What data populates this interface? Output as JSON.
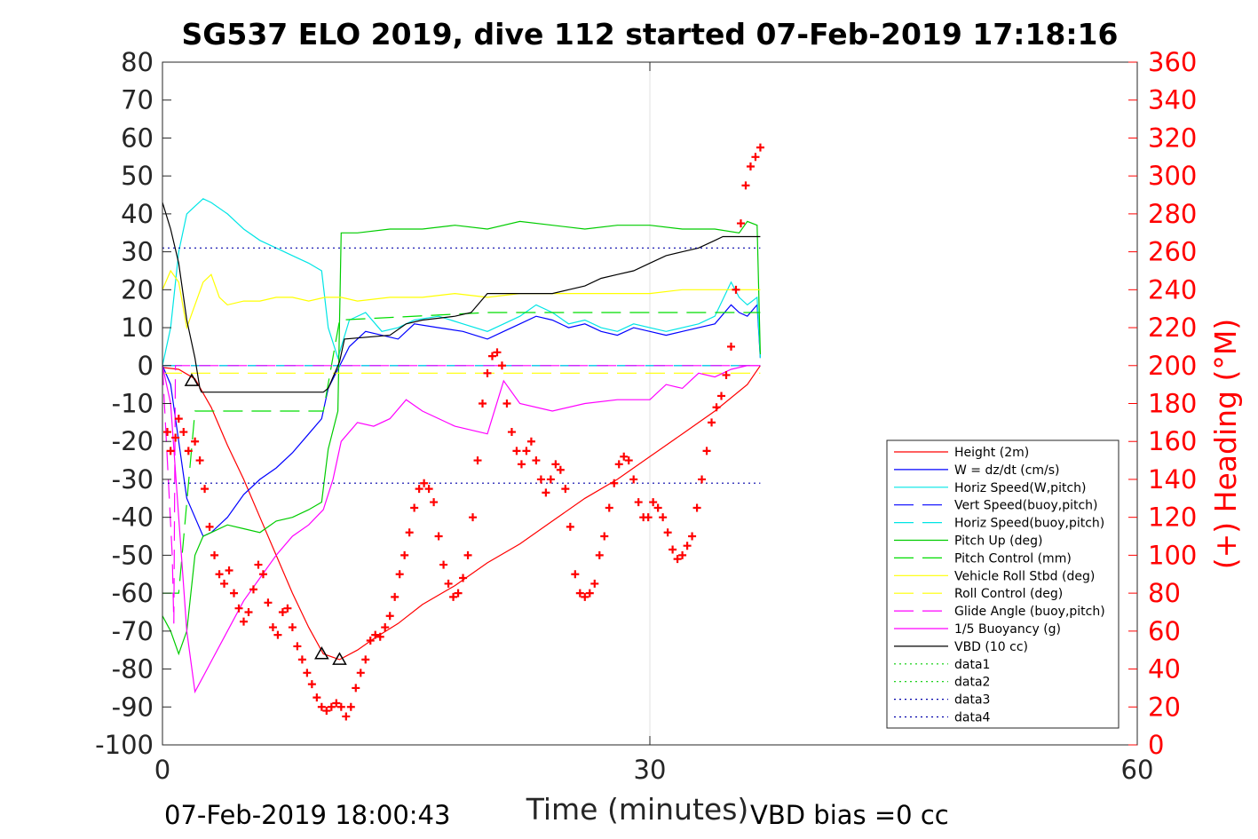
{
  "chart_data": {
    "type": "line",
    "title": "SG537 ELO 2019, dive 112 started 07-Feb-2019 17:18:16",
    "xlabel": "Time (minutes)",
    "ylabel_right": "(+) Heading (°M)",
    "xlim": [
      0,
      60
    ],
    "ylim": [
      -100,
      80
    ],
    "ylim_right": [
      0,
      360
    ],
    "x_ticks": [
      "0",
      "30",
      "60"
    ],
    "y_ticks": [
      "80",
      "70",
      "60",
      "50",
      "40",
      "30",
      "20",
      "10",
      "0",
      "-10",
      "-20",
      "-30",
      "-40",
      "-50",
      "-60",
      "-70",
      "-80",
      "-90",
      "-100"
    ],
    "y_ticks_right": [
      "360",
      "340",
      "320",
      "300",
      "280",
      "260",
      "240",
      "220",
      "200",
      "180",
      "160",
      "140",
      "120",
      "100",
      "80",
      "60",
      "40",
      "20",
      "0"
    ],
    "grid": "x-only",
    "legend_position": "lower-right",
    "footer_left": "07-Feb-2019 18:00:43",
    "footer_right": "VBD bias =0 cc",
    "series": [
      {
        "name": "Height (2m)",
        "color": "#ff0000",
        "style": "solid",
        "x": [
          0.0,
          1.0,
          2.0,
          3.0,
          4.0,
          5.0,
          6.0,
          7.0,
          8.0,
          9.0,
          9.9,
          10.9,
          12.0,
          13.0,
          14.5,
          16.0,
          18.0,
          20.0,
          22.0,
          24.0,
          26.0,
          28.0,
          30.0,
          32.0,
          34.0,
          36.0,
          36.8
        ],
        "y": [
          -0.5,
          -1.0,
          -3.5,
          -11.0,
          -21.0,
          -30.0,
          -40.0,
          -50.0,
          -60.0,
          -69.0,
          -76.0,
          -77.5,
          -75.0,
          -72.0,
          -68.0,
          -63.0,
          -58.0,
          -52.0,
          -47.0,
          -41.0,
          -35.0,
          -30.0,
          -24.0,
          -18.0,
          -12.0,
          -5.0,
          0.0
        ]
      },
      {
        "name": "W = dz/dt (cm/s)",
        "color": "#0000ff",
        "style": "solid",
        "x": [
          0.0,
          0.5,
          1.0,
          1.5,
          2.0,
          2.5,
          3.0,
          4.0,
          5.0,
          6.0,
          7.0,
          8.0,
          9.0,
          9.8,
          10.2,
          10.8,
          11.5,
          12.5,
          13.5,
          14.5,
          15.5,
          17.0,
          18.5,
          20.0,
          21.0,
          22.0,
          23.0,
          24.0,
          25.0,
          26.0,
          27.0,
          28.0,
          29.0,
          30.0,
          31.0,
          32.0,
          33.0,
          34.0,
          35.0,
          35.5,
          36.0,
          36.6,
          36.8
        ],
        "y": [
          0.0,
          -5.0,
          -20.0,
          -35.0,
          -40.0,
          -45.0,
          -44.0,
          -40.0,
          -34.0,
          -30.0,
          -27.0,
          -23.0,
          -18.0,
          -14.0,
          -6.0,
          -1.0,
          5.0,
          9.0,
          8.0,
          7.0,
          11.0,
          10.0,
          9.0,
          7.0,
          9.0,
          11.0,
          13.0,
          12.0,
          10.0,
          11.0,
          9.0,
          8.0,
          10.0,
          9.0,
          8.0,
          9.0,
          10.0,
          11.0,
          16.0,
          14.0,
          13.0,
          16.0,
          2.0
        ]
      },
      {
        "name": "Horiz Speed(W,pitch)",
        "color": "#00e5e5",
        "style": "solid",
        "x": [
          0.0,
          0.5,
          1.0,
          1.5,
          2.0,
          2.5,
          3.0,
          4.0,
          5.0,
          6.0,
          7.0,
          8.0,
          9.0,
          9.8,
          10.2,
          10.8,
          11.5,
          12.5,
          13.5,
          14.5,
          15.5,
          17.0,
          18.5,
          20.0,
          21.0,
          22.0,
          23.0,
          24.0,
          25.0,
          26.0,
          27.0,
          28.0,
          29.0,
          30.0,
          31.0,
          32.0,
          33.0,
          34.0,
          35.0,
          35.5,
          36.0,
          36.6,
          36.8
        ],
        "y": [
          0.0,
          10.0,
          30.0,
          40.0,
          42.0,
          44.0,
          43.0,
          40.0,
          36.0,
          33.0,
          31.0,
          29.0,
          27.0,
          25.0,
          10.0,
          2.0,
          12.0,
          14.0,
          9.0,
          10.0,
          12.0,
          13.0,
          11.0,
          9.0,
          11.0,
          13.0,
          16.0,
          14.0,
          11.0,
          12.0,
          10.0,
          9.0,
          11.0,
          10.0,
          9.0,
          10.0,
          11.0,
          13.0,
          22.0,
          18.0,
          16.0,
          18.0,
          2.0
        ]
      },
      {
        "name": "Vert Speed(buoy,pitch)",
        "color": "#0000ff",
        "style": "dashed",
        "x": [
          0.0,
          36.8
        ],
        "y": [
          0.0,
          0.0
        ]
      },
      {
        "name": "Horiz Speed(buoy,pitch)",
        "color": "#00e5e5",
        "style": "dashed",
        "x": [
          0.0,
          36.8
        ],
        "y": [
          0.0,
          0.0
        ]
      },
      {
        "name": "Pitch Up (deg)",
        "color": "#00cc00",
        "style": "solid",
        "x": [
          0.0,
          0.5,
          1.0,
          1.5,
          2.0,
          2.5,
          3.0,
          4.0,
          5.0,
          6.0,
          7.0,
          8.0,
          9.0,
          9.8,
          10.2,
          10.8,
          11.0,
          12.0,
          14.0,
          16.0,
          18.0,
          20.0,
          22.0,
          24.0,
          26.0,
          28.0,
          30.0,
          32.0,
          34.0,
          35.5,
          36.0,
          36.6,
          36.8
        ],
        "y": [
          -66.0,
          -70.0,
          -76.0,
          -70.0,
          -50.0,
          -45.0,
          -44.0,
          -42.0,
          -43.0,
          -44.0,
          -41.0,
          -40.0,
          -38.0,
          -36.0,
          -22.0,
          -12.0,
          35.0,
          35.0,
          36.0,
          36.0,
          37.0,
          36.0,
          38.0,
          37.0,
          36.0,
          37.0,
          37.0,
          36.0,
          36.0,
          35.0,
          38.0,
          37.0,
          3.0
        ]
      },
      {
        "name": "Pitch Control (mm)",
        "color": "#00dd00",
        "style": "dashed",
        "x": [
          0.0,
          1.0,
          2.0,
          9.9,
          10.9,
          20.0,
          36.8
        ],
        "y": [
          -60.0,
          -60.0,
          -12.0,
          -12.0,
          12.0,
          14.0,
          14.0
        ]
      },
      {
        "name": "Vehicle Roll Stbd (deg)",
        "color": "#ffff00",
        "style": "solid",
        "x": [
          0.0,
          0.5,
          1.0,
          1.5,
          2.0,
          2.5,
          3.0,
          3.5,
          4.0,
          5.0,
          6.0,
          7.0,
          8.0,
          9.0,
          10.0,
          11.0,
          12.0,
          14.0,
          16.0,
          18.0,
          20.0,
          22.0,
          24.0,
          26.0,
          28.0,
          30.0,
          32.0,
          34.0,
          35.0,
          36.0,
          36.8
        ],
        "y": [
          20.0,
          25.0,
          22.0,
          10.0,
          16.0,
          22.0,
          24.0,
          18.0,
          16.0,
          17.0,
          17.0,
          18.0,
          18.0,
          17.0,
          18.0,
          18.0,
          17.0,
          18.0,
          18.0,
          19.0,
          18.0,
          19.0,
          19.0,
          19.0,
          19.0,
          19.0,
          20.0,
          20.0,
          20.0,
          20.0,
          20.0
        ]
      },
      {
        "name": "Roll Control (deg)",
        "color": "#ffff00",
        "style": "dashed",
        "x": [
          0.0,
          36.8
        ],
        "y": [
          -2.0,
          -2.0
        ]
      },
      {
        "name": "Glide Angle (buoy,pitch)",
        "color": "#ff00ff",
        "style": "dashed",
        "x": [
          0.0,
          0.6,
          0.7,
          0.8,
          36.8
        ],
        "y": [
          0.0,
          -50.0,
          -68.0,
          0.0,
          0.0
        ]
      },
      {
        "name": "1/5 Buoyancy (g)",
        "color": "#ff00ff",
        "style": "solid",
        "x": [
          0.0,
          0.5,
          1.0,
          1.5,
          2.0,
          2.5,
          3.0,
          4.0,
          5.0,
          6.0,
          7.0,
          8.0,
          9.0,
          9.9,
          10.5,
          11.0,
          12.0,
          13.0,
          14.0,
          15.0,
          16.0,
          18.0,
          20.0,
          21.0,
          22.0,
          24.0,
          26.0,
          28.0,
          30.0,
          31.0,
          32.0,
          33.0,
          34.0,
          35.0,
          36.0,
          36.8
        ],
        "y": [
          0.0,
          -10.0,
          -40.0,
          -70.0,
          -86.0,
          -82.0,
          -78.0,
          -70.0,
          -62.0,
          -56.0,
          -50.0,
          -45.0,
          -42.0,
          -38.0,
          -30.0,
          -20.0,
          -15.0,
          -16.0,
          -14.0,
          -9.0,
          -12.0,
          -16.0,
          -18.0,
          -4.0,
          -10.0,
          -12.0,
          -10.0,
          -9.0,
          -9.0,
          -5.0,
          -6.0,
          -2.0,
          -3.0,
          -1.0,
          0.0,
          0.0
        ]
      },
      {
        "name": "VBD (10 cc)",
        "color": "#000000",
        "style": "solid",
        "x": [
          0.0,
          0.5,
          1.0,
          1.5,
          2.0,
          2.3,
          2.4,
          9.9,
          10.2,
          10.9,
          11.2,
          14.0,
          15.0,
          16.0,
          18.0,
          19.0,
          20.0,
          21.0,
          22.0,
          24.0,
          25.0,
          26.0,
          27.0,
          28.0,
          29.0,
          30.0,
          31.0,
          32.0,
          33.0,
          34.0,
          34.5,
          36.8
        ],
        "y": [
          43.0,
          36.0,
          27.0,
          12.0,
          2.0,
          -6.0,
          -7.0,
          -7.0,
          -6.0,
          1.0,
          7.0,
          8.0,
          11.0,
          12.0,
          13.0,
          14.0,
          19.0,
          19.0,
          19.0,
          19.0,
          20.0,
          21.0,
          23.0,
          24.0,
          25.0,
          27.0,
          29.0,
          30.0,
          31.0,
          33.0,
          34.0,
          34.0
        ]
      },
      {
        "name": "data1",
        "color": "#00cc00",
        "style": "dotted",
        "x": [],
        "y": []
      },
      {
        "name": "data2",
        "color": "#00cc00",
        "style": "dotted",
        "x": [],
        "y": []
      },
      {
        "name": "data3",
        "color": "#0000aa",
        "style": "dotted",
        "x": [
          0.0,
          36.8
        ],
        "y": [
          31.0,
          31.0
        ]
      },
      {
        "name": "data4",
        "color": "#0000aa",
        "style": "dotted",
        "x": [
          0.0,
          36.8
        ],
        "y": [
          -31.0,
          -31.0
        ]
      }
    ],
    "heading": {
      "axis": "right",
      "color": "#ff0000",
      "marker": "+",
      "x": [
        0.3,
        0.5,
        0.8,
        1.0,
        1.3,
        1.6,
        2.0,
        2.3,
        2.6,
        2.9,
        3.2,
        3.5,
        3.8,
        4.1,
        4.4,
        4.7,
        5.0,
        5.3,
        5.6,
        5.9,
        6.2,
        6.5,
        6.8,
        7.1,
        7.4,
        7.7,
        8.0,
        8.3,
        8.6,
        8.9,
        9.2,
        9.5,
        9.8,
        10.1,
        10.4,
        10.7,
        11.0,
        11.3,
        11.6,
        11.9,
        12.2,
        12.5,
        12.8,
        13.1,
        13.4,
        13.7,
        14.0,
        14.3,
        14.6,
        14.9,
        15.2,
        15.5,
        15.8,
        16.1,
        16.4,
        16.7,
        17.0,
        17.3,
        17.6,
        17.9,
        18.2,
        18.5,
        18.8,
        19.1,
        19.4,
        19.7,
        20.0,
        20.3,
        20.6,
        20.9,
        21.2,
        21.5,
        21.8,
        22.1,
        22.4,
        22.7,
        23.0,
        23.3,
        23.6,
        23.9,
        24.2,
        24.5,
        24.8,
        25.1,
        25.4,
        25.7,
        26.0,
        26.3,
        26.6,
        26.9,
        27.2,
        27.5,
        27.8,
        28.1,
        28.4,
        28.7,
        29.0,
        29.3,
        29.6,
        29.9,
        30.2,
        30.5,
        30.8,
        31.1,
        31.4,
        31.7,
        32.0,
        32.3,
        32.6,
        32.9,
        33.2,
        33.5,
        33.8,
        34.1,
        34.4,
        34.7,
        35.0,
        35.3,
        35.6,
        35.9,
        36.2,
        36.5,
        36.8
      ],
      "y": [
        165,
        155,
        162,
        172,
        165,
        155,
        160,
        150,
        135,
        115,
        100,
        90,
        85,
        92,
        80,
        72,
        65,
        70,
        82,
        95,
        90,
        75,
        62,
        58,
        70,
        72,
        62,
        52,
        45,
        38,
        32,
        25,
        20,
        18,
        20,
        22,
        20,
        15,
        20,
        30,
        38,
        45,
        55,
        58,
        57,
        62,
        68,
        78,
        90,
        100,
        112,
        125,
        135,
        138,
        135,
        128,
        110,
        95,
        85,
        78,
        80,
        88,
        100,
        120,
        150,
        180,
        196,
        205,
        207,
        200,
        180,
        165,
        155,
        148,
        155,
        160,
        150,
        140,
        133,
        140,
        148,
        145,
        135,
        115,
        90,
        80,
        78,
        80,
        85,
        100,
        110,
        125,
        138,
        148,
        152,
        150,
        140,
        128,
        120,
        120,
        128,
        125,
        120,
        112,
        103,
        98,
        100,
        105,
        110,
        125,
        140,
        155,
        170,
        178,
        184,
        195,
        210,
        240,
        275,
        295,
        305,
        310,
        315
      ]
    },
    "annotations": [
      {
        "marker": "triangle",
        "x": 1.8,
        "y": -4.0
      },
      {
        "marker": "triangle",
        "x": 9.8,
        "y": -76.0
      },
      {
        "marker": "triangle",
        "x": 10.9,
        "y": -77.5
      }
    ]
  }
}
